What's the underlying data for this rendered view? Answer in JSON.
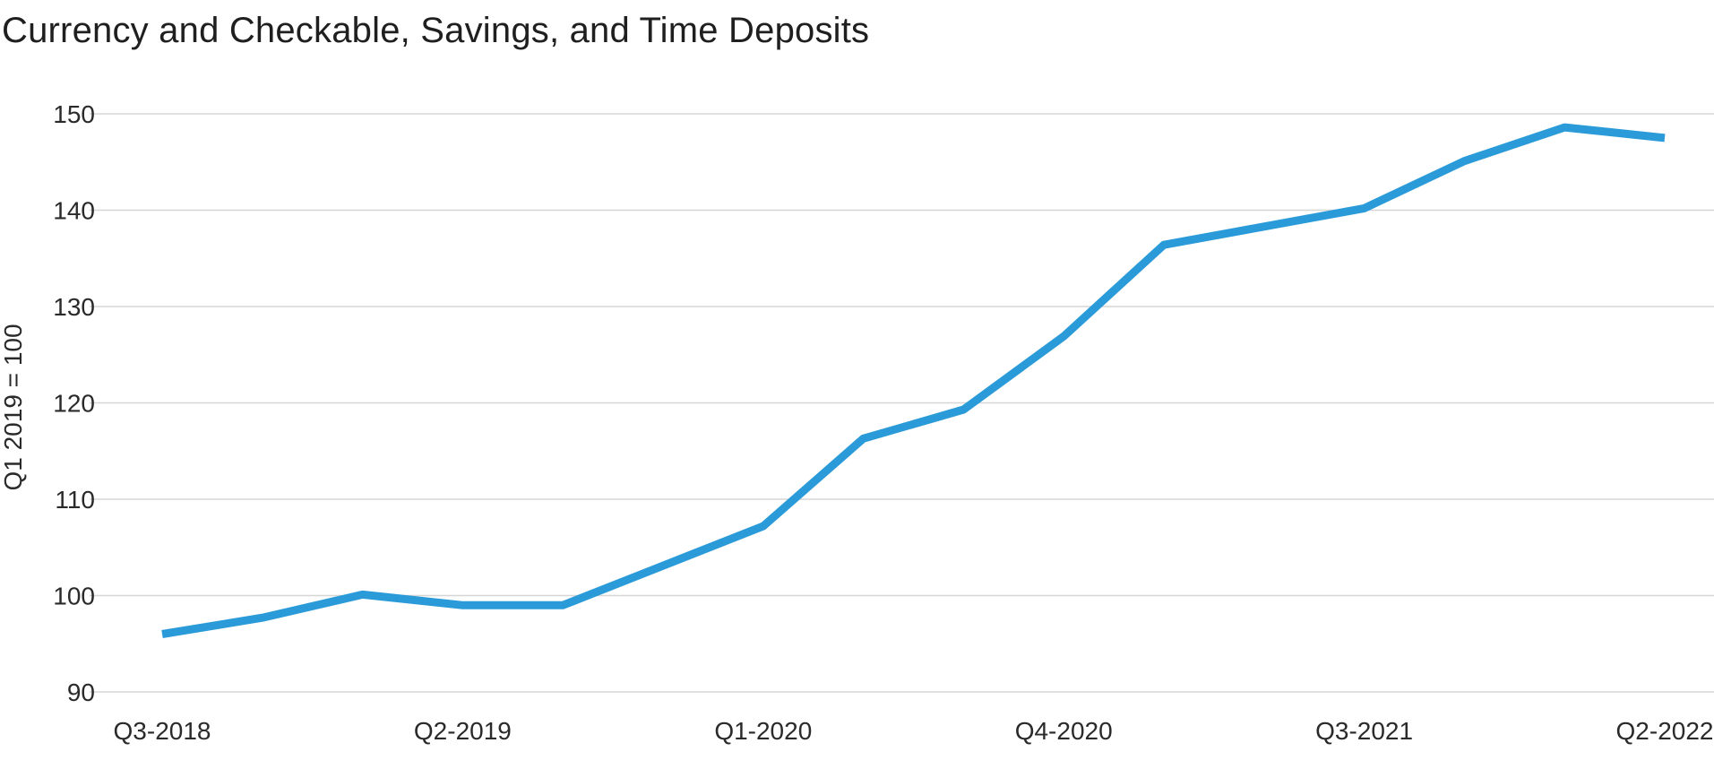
{
  "chart_data": {
    "type": "line",
    "title": "Currency and Checkable, Savings, and Time Deposits",
    "xlabel": "",
    "ylabel": "Q1 2019 = 100",
    "ylim": [
      90,
      150
    ],
    "yticks": [
      90,
      100,
      110,
      120,
      130,
      140,
      150
    ],
    "grid": true,
    "line_color": "#2a9bd8",
    "x": [
      "Q3-2018",
      "Q4-2018",
      "Q1-2019",
      "Q2-2019",
      "Q3-2019",
      "Q4-2019",
      "Q1-2020",
      "Q2-2020",
      "Q3-2020",
      "Q4-2020",
      "Q1-2021",
      "Q2-2021",
      "Q3-2021",
      "Q4-2021",
      "Q1-2022",
      "Q2-2022"
    ],
    "x_tick_labels": [
      "Q3-2018",
      "Q2-2019",
      "Q1-2020",
      "Q4-2020",
      "Q3-2021",
      "Q2-2022"
    ],
    "series": [
      {
        "values": [
          96.0,
          97.7,
          100.1,
          99.0,
          99.0,
          103.1,
          107.2,
          116.3,
          119.3,
          126.9,
          136.4,
          138.3,
          140.2,
          145.1,
          148.6,
          147.5
        ]
      }
    ]
  }
}
